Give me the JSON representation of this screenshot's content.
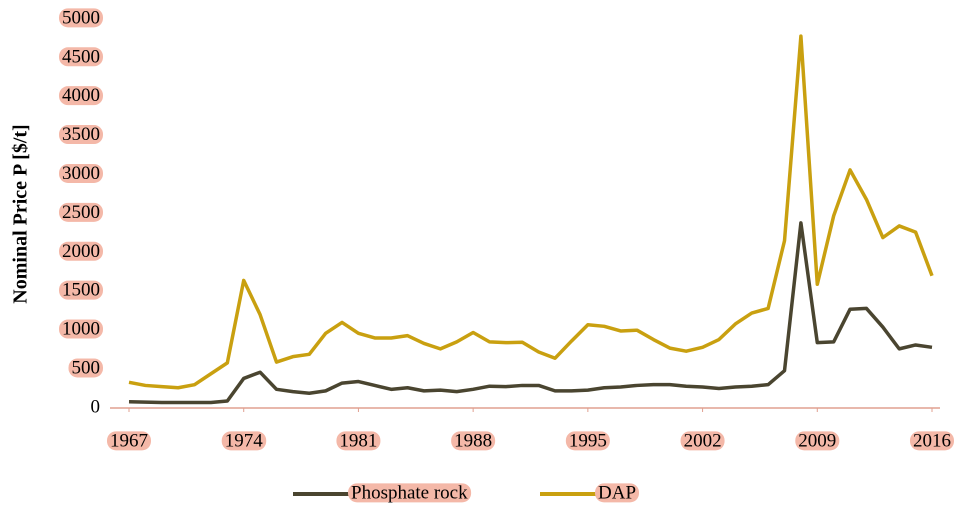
{
  "chart_data": {
    "type": "line",
    "y_label": "Nominal Price P [$/t]",
    "x": [
      1967,
      1968,
      1969,
      1970,
      1971,
      1972,
      1973,
      1974,
      1975,
      1976,
      1977,
      1978,
      1979,
      1980,
      1981,
      1982,
      1983,
      1984,
      1985,
      1986,
      1987,
      1988,
      1989,
      1990,
      1991,
      1992,
      1993,
      1994,
      1995,
      1996,
      1997,
      1998,
      1999,
      2000,
      2001,
      2002,
      2003,
      2004,
      2005,
      2006,
      2007,
      2008,
      2009,
      2010,
      2011,
      2012,
      2013,
      2014,
      2015,
      2016
    ],
    "series": [
      {
        "name": "Phosphate rock",
        "color": "#4a4530",
        "values": [
          80,
          75,
          70,
          70,
          70,
          70,
          90,
          380,
          460,
          240,
          210,
          190,
          220,
          320,
          340,
          290,
          240,
          260,
          220,
          230,
          210,
          240,
          280,
          275,
          290,
          290,
          220,
          220,
          230,
          260,
          270,
          290,
          300,
          300,
          280,
          270,
          250,
          270,
          280,
          300,
          480,
          2380,
          840,
          850,
          1270,
          1280,
          1040,
          760,
          810,
          780
        ]
      },
      {
        "name": "DAP",
        "color": "#c9a010",
        "values": [
          330,
          290,
          275,
          260,
          300,
          440,
          580,
          1640,
          1200,
          590,
          660,
          690,
          960,
          1100,
          960,
          900,
          900,
          930,
          830,
          760,
          850,
          970,
          850,
          840,
          845,
          720,
          640,
          860,
          1070,
          1050,
          990,
          1000,
          880,
          770,
          730,
          780,
          880,
          1080,
          1220,
          1280,
          2150,
          4780,
          1590,
          2470,
          3060,
          2680,
          2190,
          2340,
          2260,
          1700
        ]
      }
    ],
    "xlim": [
      1967,
      2016
    ],
    "xticks": [
      1967,
      1974,
      1981,
      1988,
      1995,
      2002,
      2009,
      2016
    ],
    "ylim": [
      0,
      5000
    ],
    "yticks": [
      0,
      500,
      1000,
      1500,
      2000,
      2500,
      3000,
      3500,
      4000,
      4500,
      5000
    ],
    "legend": "bottom"
  }
}
